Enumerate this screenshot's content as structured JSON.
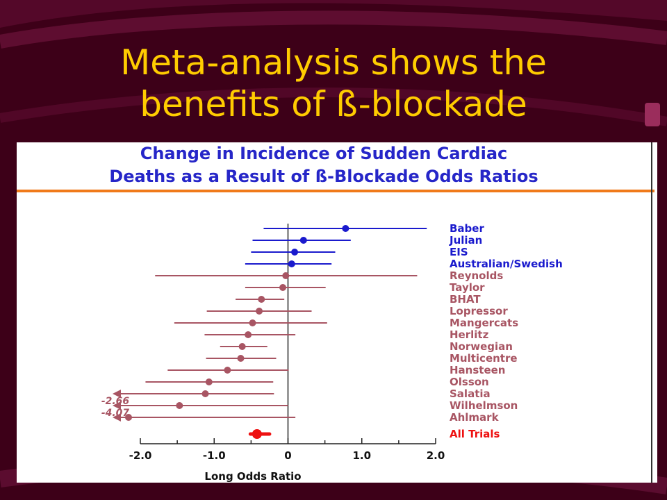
{
  "slide": {
    "title_line1": "Meta-analysis shows the",
    "title_line2": "benefits of ß-blockade"
  },
  "colors": {
    "background": "#3d0018",
    "title": "#ffcc00",
    "chart_title": "#2626c8",
    "rule": "#f07a1a",
    "positive_series": "#1a1acd",
    "negative_series": "#a85563",
    "pooled": "#ee1111"
  },
  "chart_data": {
    "type": "forest",
    "title_line1": "Change in Incidence of Sudden Cardiac",
    "title_line2": "Deaths as a Result of ß-Blockade Odds Ratios",
    "xlabel": "Long Odds Ratio",
    "xlim": [
      -2.0,
      2.0
    ],
    "xticks": [
      "-2.0",
      "-1.0",
      "0",
      "1.0",
      "2.0"
    ],
    "studies": [
      {
        "name": "Baber",
        "estimate": 0.78,
        "lower": -0.33,
        "upper": 1.88,
        "group": "positive"
      },
      {
        "name": "Julian",
        "estimate": 0.21,
        "lower": -0.48,
        "upper": 0.85,
        "group": "positive"
      },
      {
        "name": "EIS",
        "estimate": 0.09,
        "lower": -0.5,
        "upper": 0.64,
        "group": "positive"
      },
      {
        "name": "Australian/Swedish",
        "estimate": 0.05,
        "lower": -0.58,
        "upper": 0.59,
        "group": "positive"
      },
      {
        "name": "Reynolds",
        "estimate": -0.03,
        "lower": -1.8,
        "upper": 1.75,
        "group": "negative"
      },
      {
        "name": "Taylor",
        "estimate": -0.07,
        "lower": -0.58,
        "upper": 0.51,
        "group": "negative"
      },
      {
        "name": "BHAT",
        "estimate": -0.36,
        "lower": -0.71,
        "upper": -0.05,
        "group": "negative"
      },
      {
        "name": "Lopressor",
        "estimate": -0.39,
        "lower": -1.1,
        "upper": 0.32,
        "group": "negative"
      },
      {
        "name": "Mangercats",
        "estimate": -0.48,
        "lower": -1.54,
        "upper": 0.53,
        "group": "negative"
      },
      {
        "name": "Herlitz",
        "estimate": -0.54,
        "lower": -1.13,
        "upper": 0.1,
        "group": "negative"
      },
      {
        "name": "Norwegian",
        "estimate": -0.62,
        "lower": -0.92,
        "upper": -0.28,
        "group": "negative"
      },
      {
        "name": "Multicentre",
        "estimate": -0.64,
        "lower": -1.11,
        "upper": -0.16,
        "group": "negative"
      },
      {
        "name": "Hansteen",
        "estimate": -0.82,
        "lower": -1.63,
        "upper": 0.01,
        "group": "negative"
      },
      {
        "name": "Olsson",
        "estimate": -1.07,
        "lower": -1.93,
        "upper": -0.2,
        "group": "negative"
      },
      {
        "name": "Salatia",
        "estimate": -1.12,
        "lower": -2.03,
        "upper": -0.19,
        "group": "negative"
      },
      {
        "name": "Wilhelmson",
        "estimate": -1.47,
        "lower": -2.66,
        "upper": 0.0,
        "group": "negative",
        "lower_label": "-2.66"
      },
      {
        "name": "Ahlmark",
        "estimate": -2.16,
        "lower": -4.07,
        "upper": 0.1,
        "group": "negative",
        "lower_label": "-4.07"
      }
    ],
    "pooled": {
      "name": "All Trials",
      "estimate": -0.42,
      "lower": -0.51,
      "upper": -0.25
    }
  }
}
